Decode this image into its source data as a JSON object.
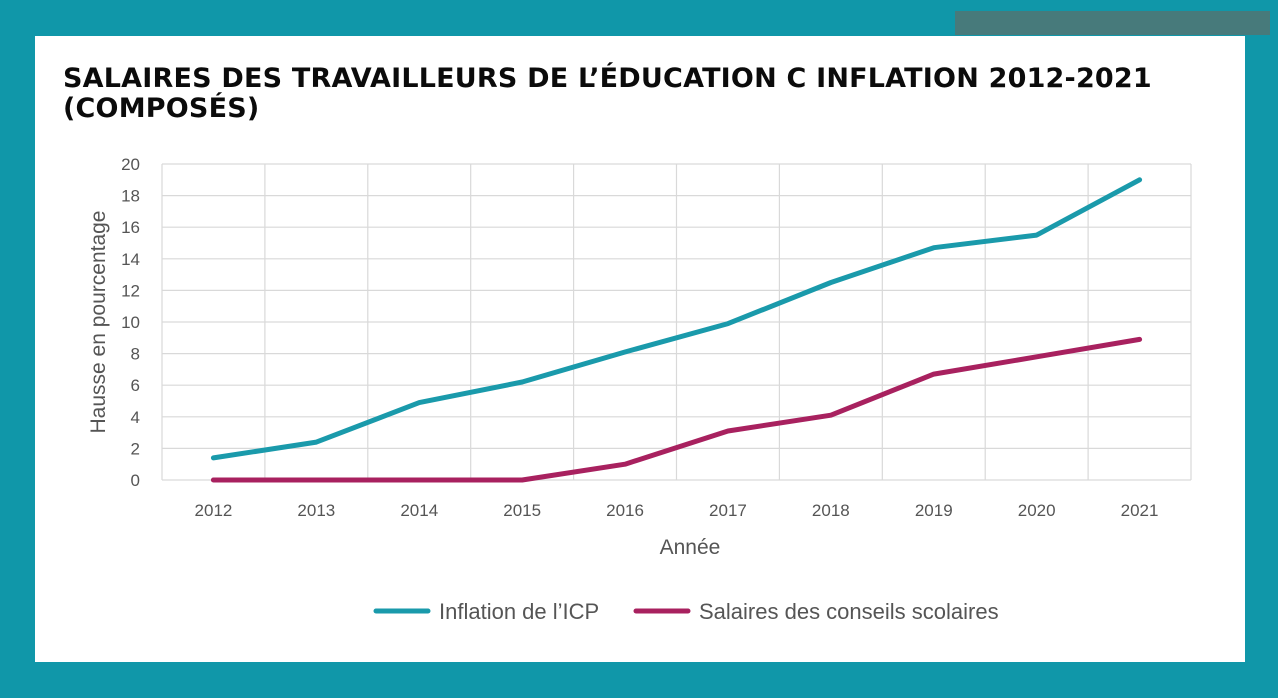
{
  "chart_data": {
    "type": "line",
    "title": "SALAIRES DES TRAVAILLEURS DE L’ÉDUCATION C INFLATION 2012-2021 (COMPOSÉS)",
    "xlabel": "Année",
    "ylabel": "Hausse en pourcentage",
    "categories": [
      "2012",
      "2013",
      "2014",
      "2015",
      "2016",
      "2017",
      "2018",
      "2019",
      "2020",
      "2021"
    ],
    "yticks": [
      0,
      2,
      4,
      6,
      8,
      10,
      12,
      14,
      16,
      18,
      20
    ],
    "ylim": [
      0,
      20
    ],
    "grid": true,
    "legend_position": "bottom",
    "series": [
      {
        "name": "Inflation de l’ICP",
        "color": "#1a9aab",
        "values": [
          1.4,
          2.4,
          4.9,
          6.2,
          8.1,
          9.9,
          12.5,
          14.7,
          15.5,
          19.0
        ]
      },
      {
        "name": "Salaires des conseils scolaires",
        "color": "#a8215f",
        "values": [
          0,
          0,
          0,
          0,
          1.0,
          3.1,
          4.1,
          6.7,
          7.8,
          8.9
        ]
      }
    ]
  }
}
